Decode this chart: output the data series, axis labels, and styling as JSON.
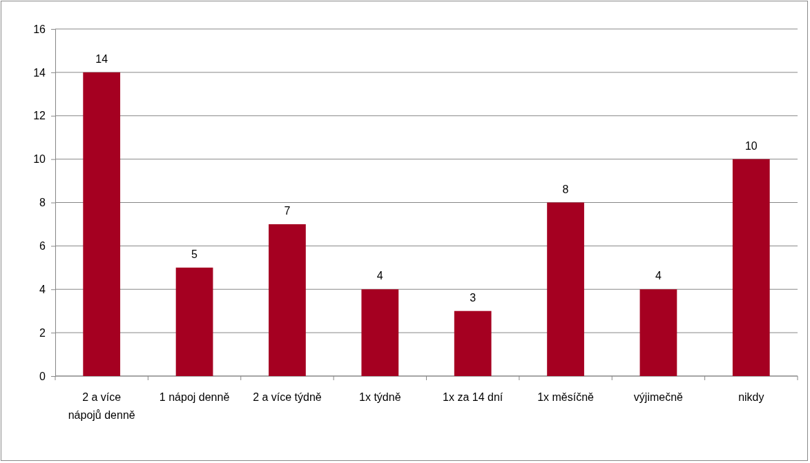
{
  "chart_data": {
    "type": "bar",
    "categories": [
      "2 a více nápojů denně",
      "1 nápoj denně",
      "2 a více týdně",
      "1x týdně",
      "1x za 14 dní",
      "1x měsíčně",
      "výjimečně",
      "nikdy"
    ],
    "values": [
      14,
      5,
      7,
      4,
      3,
      8,
      4,
      10
    ],
    "color": "#a50021",
    "ylim": [
      0,
      16
    ],
    "yticks": [
      0,
      2,
      4,
      6,
      8,
      10,
      12,
      14,
      16
    ],
    "grid": "y",
    "data_labels": true
  }
}
